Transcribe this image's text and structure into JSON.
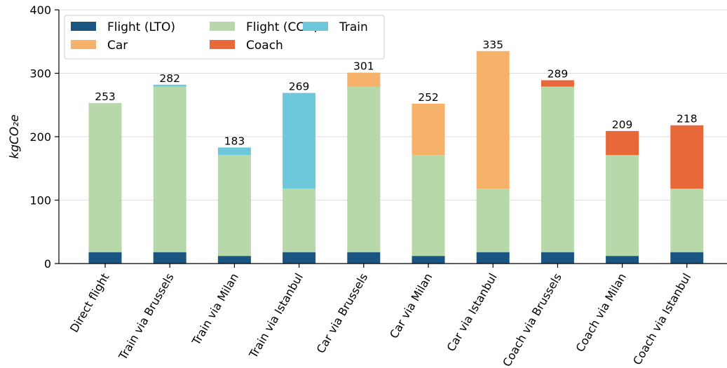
{
  "chart_data": {
    "type": "bar",
    "stacked": true,
    "categories": [
      "Direct flight",
      "Train via Brussels",
      "Train via Milan",
      "Train via Istanbul",
      "Car via Brussels",
      "Car via Milan",
      "Car via Istanbul",
      "Coach via Brussels",
      "Coach via Milan",
      "Coach via Istanbul"
    ],
    "series": [
      {
        "name": "Flight (LTO)",
        "color": "#1a5480",
        "values": [
          18,
          18,
          12,
          18,
          18,
          12,
          18,
          18,
          12,
          18
        ]
      },
      {
        "name": "Flight (CCD)",
        "color": "#b7d9aa",
        "values": [
          235,
          261,
          159,
          100,
          261,
          159,
          100,
          261,
          159,
          100
        ]
      },
      {
        "name": "Train",
        "color": "#6ec8dc",
        "values": [
          0,
          3,
          12,
          151,
          0,
          0,
          0,
          0,
          0,
          0
        ]
      },
      {
        "name": "Car",
        "color": "#f6b26b",
        "values": [
          0,
          0,
          0,
          0,
          22,
          81,
          217,
          0,
          0,
          0
        ]
      },
      {
        "name": "Coach",
        "color": "#e8683a",
        "values": [
          0,
          0,
          0,
          0,
          0,
          0,
          0,
          10,
          38,
          100
        ]
      }
    ],
    "totals": [
      "253",
      "282",
      "183",
      "269",
      "301",
      "252",
      "335",
      "289",
      "209",
      "218"
    ],
    "ylabel": "kgCO₂e",
    "ylim": [
      0,
      400
    ],
    "yticks": [
      0,
      100,
      200,
      300,
      400
    ],
    "grid": "horizontal",
    "legend": {
      "position": "top-left",
      "columns": 3
    }
  }
}
